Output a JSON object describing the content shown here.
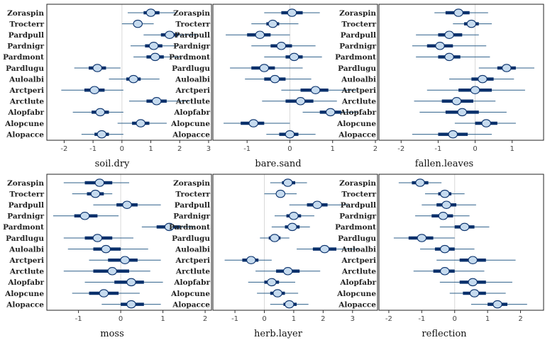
{
  "colors": {
    "ci": "#08306b",
    "ci_thin": "#2c5f8a",
    "point_fill": "#c6dbef",
    "point_stroke": "#08306b"
  },
  "chart_data": {
    "type": "forest",
    "species": [
      "Zoraspin",
      "Trocterr",
      "Pardpull",
      "Pardnigr",
      "Pardmont",
      "Pardlugu",
      "Auloalbi",
      "Arctperi",
      "Arctlute",
      "Alopfabr",
      "Alopcune",
      "Alopacce"
    ],
    "panels": [
      {
        "xlabel": "soil.dry",
        "xlim": [
          -2.6,
          3.1
        ],
        "ticks": [
          -2,
          -1,
          0,
          1,
          2,
          3
        ],
        "est": [
          1.0,
          0.55,
          1.65,
          1.1,
          1.15,
          -0.85,
          0.4,
          -0.95,
          1.2,
          -0.75,
          0.65,
          -0.7
        ],
        "lo50": [
          0.75,
          0.4,
          1.35,
          0.8,
          0.85,
          -1.15,
          0.15,
          -1.3,
          0.85,
          -1.05,
          0.35,
          -0.95
        ],
        "hi50": [
          1.3,
          0.7,
          1.95,
          1.4,
          1.45,
          -0.55,
          0.65,
          -0.6,
          1.55,
          -0.45,
          0.95,
          -0.45
        ],
        "lo95": [
          0.2,
          0.0,
          0.75,
          0.3,
          0.4,
          -1.65,
          -0.45,
          -2.1,
          0.25,
          -1.7,
          -0.15,
          -1.4
        ],
        "hi95": [
          1.9,
          1.1,
          2.6,
          1.95,
          2.05,
          -0.05,
          1.3,
          0.05,
          2.35,
          0.05,
          1.55,
          0.05
        ]
      },
      {
        "xlabel": "bare.sand",
        "xlim": [
          -1.8,
          2.05
        ],
        "ticks": [
          -1,
          0,
          1,
          2
        ],
        "est": [
          0.05,
          -0.4,
          -0.7,
          -0.2,
          0.1,
          -0.6,
          -0.35,
          0.6,
          0.25,
          0.95,
          -0.85,
          0.0
        ],
        "lo50": [
          -0.2,
          -0.55,
          -1.0,
          -0.45,
          -0.1,
          -0.9,
          -0.6,
          0.25,
          -0.1,
          0.7,
          -1.15,
          -0.25
        ],
        "hi50": [
          0.3,
          -0.25,
          -0.45,
          0.05,
          0.3,
          -0.35,
          -0.1,
          0.9,
          0.55,
          1.2,
          -0.6,
          0.2
        ],
        "lo95": [
          -0.6,
          -0.9,
          -1.5,
          -0.9,
          -0.6,
          -1.4,
          -1.05,
          -0.2,
          -0.65,
          0.3,
          -1.55,
          -0.55
        ],
        "hi95": [
          0.7,
          0.2,
          0.0,
          0.6,
          0.75,
          0.3,
          0.5,
          1.55,
          1.1,
          1.6,
          0.0,
          0.6
        ]
      },
      {
        "xlabel": "fallen.leaves",
        "xlim": [
          -2.6,
          1.85
        ],
        "ticks": [
          -2,
          -1,
          0,
          1
        ],
        "est": [
          -0.45,
          -0.1,
          -0.7,
          -0.95,
          -0.7,
          0.85,
          0.2,
          0.0,
          -0.5,
          -0.35,
          0.3,
          -0.6
        ],
        "lo50": [
          -0.8,
          -0.3,
          -1.0,
          -1.3,
          -1.0,
          0.6,
          -0.1,
          -0.45,
          -0.9,
          -0.8,
          0.0,
          -1.0
        ],
        "hi50": [
          -0.15,
          0.1,
          -0.35,
          -0.6,
          -0.4,
          1.1,
          0.5,
          0.45,
          -0.05,
          0.1,
          0.6,
          -0.2
        ],
        "lo95": [
          -1.1,
          -0.6,
          -1.6,
          -1.7,
          -1.6,
          0.1,
          -0.7,
          -1.3,
          -1.65,
          -1.5,
          -0.55,
          -1.7
        ],
        "hi95": [
          0.35,
          0.45,
          0.1,
          0.3,
          0.4,
          1.6,
          1.05,
          1.35,
          0.55,
          0.85,
          1.1,
          0.45
        ]
      },
      {
        "xlabel": "moss",
        "xlim": [
          -1.75,
          2.15
        ],
        "ticks": [
          -1,
          0,
          1,
          2
        ],
        "est": [
          -0.5,
          -0.6,
          0.15,
          -0.85,
          1.15,
          -0.55,
          -0.35,
          0.1,
          -0.2,
          0.25,
          -0.4,
          0.25
        ],
        "lo50": [
          -0.85,
          -0.8,
          -0.1,
          -1.1,
          0.85,
          -0.85,
          -0.65,
          -0.3,
          -0.65,
          -0.15,
          -0.75,
          0.0
        ],
        "hi50": [
          -0.2,
          -0.4,
          0.4,
          -0.55,
          1.4,
          -0.2,
          0.0,
          0.4,
          0.2,
          0.55,
          -0.05,
          0.55
        ],
        "lo95": [
          -1.35,
          -1.15,
          -0.65,
          -1.6,
          0.5,
          -1.35,
          -1.25,
          -0.75,
          -1.35,
          -0.85,
          -1.15,
          -0.45
        ],
        "hi95": [
          0.2,
          -0.2,
          0.95,
          -0.05,
          1.75,
          0.3,
          0.65,
          0.95,
          0.7,
          1.0,
          0.45,
          0.95
        ]
      },
      {
        "xlabel": "herb.layer",
        "xlim": [
          -1.75,
          3.85
        ],
        "ticks": [
          -1,
          0,
          1,
          2,
          3
        ],
        "est": [
          0.8,
          0.55,
          1.8,
          1.0,
          0.95,
          0.35,
          2.05,
          -0.45,
          0.8,
          0.25,
          0.45,
          0.85
        ],
        "lo50": [
          0.6,
          0.4,
          1.45,
          0.75,
          0.7,
          0.15,
          1.65,
          -0.75,
          0.4,
          0.0,
          0.2,
          0.65
        ],
        "hi50": [
          1.05,
          0.7,
          2.15,
          1.25,
          1.2,
          0.55,
          2.45,
          -0.2,
          1.2,
          0.5,
          0.7,
          1.1
        ],
        "lo95": [
          0.2,
          0.0,
          0.85,
          0.35,
          0.25,
          -0.15,
          1.1,
          -1.35,
          -0.3,
          -0.55,
          -0.25,
          0.2
        ],
        "hi95": [
          1.45,
          1.1,
          2.85,
          1.7,
          1.55,
          0.85,
          3.2,
          0.25,
          1.9,
          1.05,
          1.15,
          1.5
        ]
      },
      {
        "xlabel": "reflection",
        "xlim": [
          -2.3,
          2.7
        ],
        "ticks": [
          -2,
          -1,
          0,
          1,
          2
        ],
        "est": [
          -1.05,
          -0.3,
          -0.25,
          -0.35,
          0.3,
          -1.0,
          -0.3,
          0.55,
          -0.3,
          0.55,
          0.6,
          1.3
        ],
        "lo50": [
          -1.3,
          -0.5,
          -0.55,
          -0.7,
          0.0,
          -1.4,
          -0.6,
          0.15,
          -0.65,
          0.15,
          0.25,
          1.0
        ],
        "hi50": [
          -0.8,
          -0.1,
          0.05,
          -0.05,
          0.6,
          -0.65,
          0.0,
          0.95,
          0.0,
          0.95,
          0.95,
          1.6
        ],
        "lo95": [
          -1.7,
          -0.9,
          -1.0,
          -1.2,
          -0.45,
          -1.85,
          -1.05,
          -0.55,
          -1.25,
          -0.45,
          -0.15,
          0.5
        ],
        "hi95": [
          -0.4,
          0.3,
          0.65,
          0.45,
          1.05,
          0.0,
          0.6,
          1.85,
          0.9,
          1.75,
          1.55,
          2.2
        ]
      }
    ]
  }
}
